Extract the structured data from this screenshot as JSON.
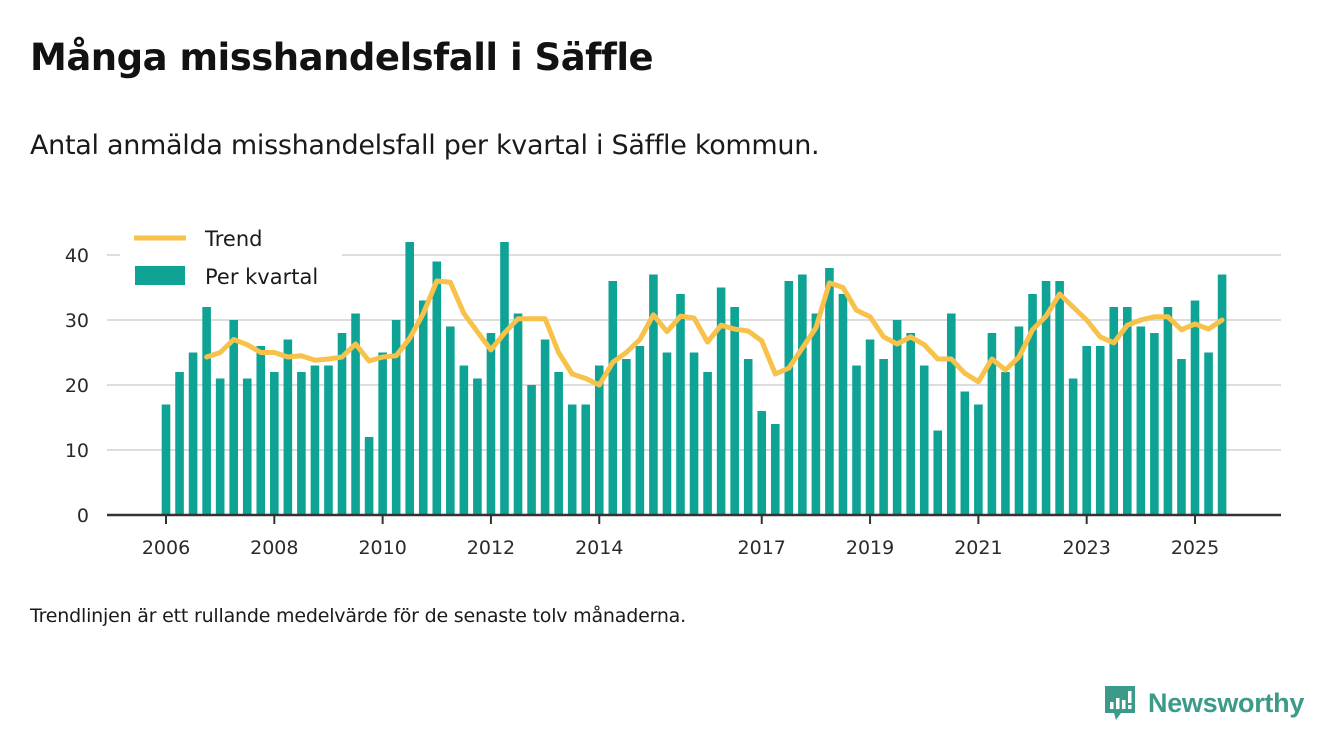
{
  "header": {
    "title": "Många misshandelsfall i Säffle",
    "subtitle": "Antal anmälda misshandelsfall per kvartal i Säffle kommun."
  },
  "footer": {
    "note": "Trendlinjen är ett rullande medelvärde för de senaste tolv månaderna.",
    "brand": "Newsworthy",
    "brand_icon": "bar-chart-speech-bubble-icon"
  },
  "colors": {
    "bars": "#0fa396",
    "trend": "#f8c14a",
    "grid": "#dddddd",
    "axis": "#333333",
    "brand": "#3c9a8a"
  },
  "chart_data": {
    "type": "bar",
    "title": "Många misshandelsfall i Säffle",
    "subtitle": "Antal anmälda misshandelsfall per kvartal i Säffle kommun.",
    "xlabel": "",
    "ylabel": "",
    "ylim": [
      0,
      43
    ],
    "yticks": [
      0,
      10,
      20,
      30,
      40
    ],
    "xticks": [
      "2006",
      "2008",
      "2010",
      "2012",
      "2014",
      "2017",
      "2019",
      "2021",
      "2023",
      "2025"
    ],
    "grid": true,
    "legend": {
      "placement": "top-left",
      "entries": [
        "Trend",
        "Per kvartal"
      ]
    },
    "start": {
      "year": 2006,
      "quarter": 1
    },
    "series": [
      {
        "name": "Per kvartal",
        "type": "bar",
        "values": [
          17,
          22,
          25,
          32,
          21,
          30,
          21,
          26,
          22,
          27,
          22,
          23,
          23,
          28,
          31,
          12,
          25,
          30,
          42,
          33,
          39,
          29,
          23,
          21,
          28,
          42,
          31,
          20,
          27,
          22,
          17,
          17,
          23,
          36,
          24,
          26,
          37,
          25,
          34,
          25,
          22,
          35,
          32,
          24,
          16,
          14,
          36,
          37,
          31,
          38,
          34,
          23,
          27,
          24,
          30,
          28,
          23,
          13,
          31,
          19,
          17,
          28,
          22,
          29,
          34,
          36,
          36,
          21,
          26,
          26,
          32,
          32,
          29,
          28,
          32,
          24,
          33,
          25,
          37
        ]
      },
      {
        "name": "Trend",
        "type": "line",
        "start_index": 3,
        "values": [
          24.3,
          25.0,
          27.0,
          26.2,
          25.0,
          25.0,
          24.3,
          24.5,
          23.8,
          24.0,
          24.3,
          26.3,
          23.7,
          24.3,
          24.5,
          27.2,
          31.0,
          36.0,
          35.8,
          31.0,
          28.2,
          25.4,
          28.0,
          30.2,
          30.2,
          30.2,
          25.0,
          21.7,
          21.0,
          20.0,
          23.5,
          25.0,
          27.0,
          30.8,
          28.2,
          30.6,
          30.3,
          26.6,
          29.2,
          28.6,
          28.3,
          26.8,
          21.7,
          22.6,
          25.7,
          28.8,
          35.7,
          35.0,
          31.5,
          30.5,
          27.4,
          26.3,
          27.4,
          26.2,
          24.0,
          24.0,
          21.8,
          20.5,
          24.0,
          22.3,
          24.3,
          28.5,
          30.6,
          34.0,
          32.0,
          30.0,
          27.4,
          26.5,
          29.2,
          30.0,
          30.5,
          30.5,
          28.5,
          29.4,
          28.6,
          30.0
        ]
      }
    ]
  }
}
